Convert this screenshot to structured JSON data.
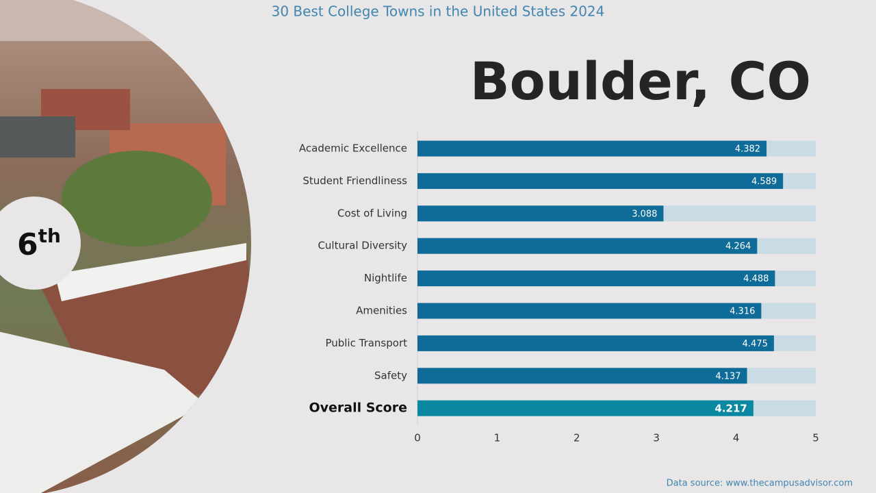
{
  "chart_data": {
    "type": "barh",
    "title": "30 Best College Towns in the United States 2024",
    "subtitle": "Boulder, CO",
    "rank": "6",
    "rank_suffix": "th",
    "source": "Data source: www.thecampusadvisor.com",
    "categories": [
      "Academic Excellence",
      "Student Friendliness",
      "Cost of Living",
      "Cultural Diversity",
      "Nightlife",
      "Amenities",
      "Public Transport",
      "Safety",
      "Overall Score"
    ],
    "values": [
      4.382,
      4.589,
      3.088,
      4.264,
      4.488,
      4.316,
      4.475,
      4.137,
      4.217
    ],
    "colors": [
      "#0f6b97",
      "#0f6b97",
      "#0f6b97",
      "#0f6b97",
      "#0f6b97",
      "#0f6b97",
      "#0f6b97",
      "#0f6b97",
      "#0a87a1"
    ],
    "track_color": "#c9dbe4",
    "xlim": [
      0,
      5
    ],
    "xticks": [
      0,
      1,
      2,
      3,
      4,
      5
    ]
  }
}
